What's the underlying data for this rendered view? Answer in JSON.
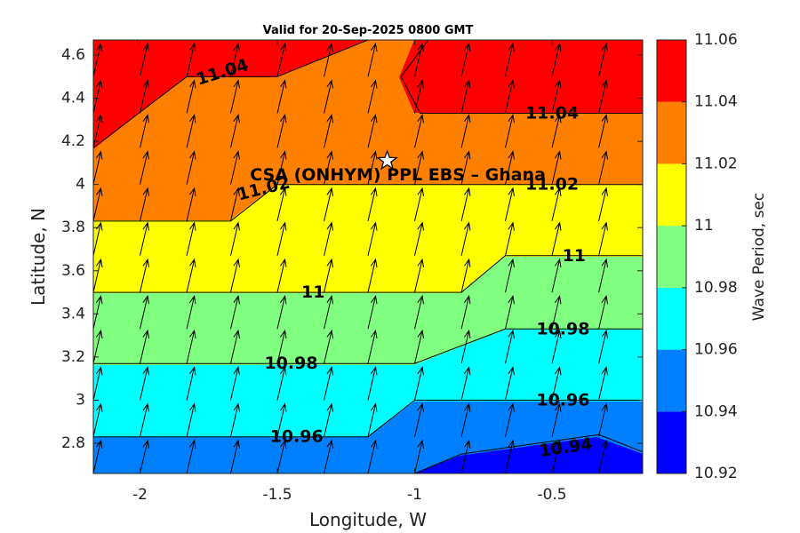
{
  "chart_data": {
    "type": "filled-contour",
    "title": "Valid for 20-Sep-2025 0800 GMT",
    "xlabel": "Longitude, W",
    "ylabel": "Latitude, N",
    "xlim": [
      -2.17,
      -0.17
    ],
    "ylim": [
      2.66,
      4.67
    ],
    "x_ticks": [
      {
        "value": -2,
        "label": "-2"
      },
      {
        "value": -1.5,
        "label": "-1.5"
      },
      {
        "value": -1,
        "label": "-1"
      },
      {
        "value": -0.5,
        "label": "-0.5"
      }
    ],
    "y_ticks": [
      {
        "value": 2.8,
        "label": "2.8"
      },
      {
        "value": 3.0,
        "label": "3"
      },
      {
        "value": 3.2,
        "label": "3.2"
      },
      {
        "value": 3.4,
        "label": "3.4"
      },
      {
        "value": 3.6,
        "label": "3.6"
      },
      {
        "value": 3.8,
        "label": "3.8"
      },
      {
        "value": 4.0,
        "label": "4"
      },
      {
        "value": 4.2,
        "label": "4.2"
      },
      {
        "value": 4.4,
        "label": "4.4"
      },
      {
        "value": 4.6,
        "label": "4.6"
      }
    ],
    "colorbar": {
      "label": "Wave Period, sec",
      "levels": [
        10.92,
        10.94,
        10.96,
        10.98,
        11.0,
        11.02,
        11.04,
        11.06
      ],
      "tick_labels": [
        "10.92",
        "10.94",
        "10.96",
        "10.98",
        "11",
        "11.02",
        "11.04",
        "11.06"
      ],
      "colors": [
        "#0000ff",
        "#0080ff",
        "#00ffff",
        "#80ff80",
        "#ffff00",
        "#ff8000",
        "#ff0000"
      ]
    },
    "contour_lines": [
      {
        "level": 10.94,
        "points": [
          [
            -1.0,
            2.66
          ],
          [
            -0.83,
            2.75
          ],
          [
            -0.33,
            2.84
          ],
          [
            -0.17,
            2.76
          ]
        ]
      },
      {
        "level": 10.96,
        "points": [
          [
            -2.17,
            2.83
          ],
          [
            -1.17,
            2.83
          ],
          [
            -1.0,
            3.0
          ],
          [
            -0.17,
            3.0
          ]
        ]
      },
      {
        "level": 10.98,
        "points": [
          [
            -2.17,
            3.17
          ],
          [
            -1.0,
            3.17
          ],
          [
            -0.67,
            3.33
          ],
          [
            -0.17,
            3.33
          ]
        ]
      },
      {
        "level": 11.0,
        "points": [
          [
            -2.17,
            3.5
          ],
          [
            -0.83,
            3.5
          ],
          [
            -0.67,
            3.67
          ],
          [
            -0.17,
            3.67
          ]
        ]
      },
      {
        "level": 11.02,
        "points": [
          [
            -2.17,
            3.83
          ],
          [
            -1.67,
            3.83
          ],
          [
            -1.5,
            4.0
          ],
          [
            -0.17,
            4.0
          ]
        ]
      },
      {
        "level": 11.04,
        "points": [
          [
            -2.17,
            4.17
          ],
          [
            -1.83,
            4.5
          ],
          [
            -1.5,
            4.5
          ],
          [
            -1.17,
            4.67
          ]
        ]
      },
      {
        "level": 11.04,
        "points": [
          [
            -0.95,
            4.67
          ],
          [
            -1.05,
            4.5
          ],
          [
            -0.98,
            4.33
          ],
          [
            -0.17,
            4.33
          ]
        ]
      }
    ],
    "contour_labels": [
      {
        "text": "11.04",
        "x": -1.7,
        "y": 4.52,
        "angle": -17
      },
      {
        "text": "11.04",
        "x": -0.5,
        "y": 4.33,
        "angle": 0
      },
      {
        "text": "11.02",
        "x": -1.55,
        "y": 3.98,
        "angle": -14
      },
      {
        "text": "11.02",
        "x": -0.5,
        "y": 4.0,
        "angle": 0
      },
      {
        "text": "11",
        "x": -0.42,
        "y": 3.67,
        "angle": 0
      },
      {
        "text": "11",
        "x": -1.37,
        "y": 3.5,
        "angle": 0
      },
      {
        "text": "10.98",
        "x": -1.45,
        "y": 3.17,
        "angle": 0
      },
      {
        "text": "10.98",
        "x": -0.46,
        "y": 3.33,
        "angle": 0
      },
      {
        "text": "10.96",
        "x": -0.46,
        "y": 3.0,
        "angle": 0
      },
      {
        "text": "10.96",
        "x": -1.43,
        "y": 2.83,
        "angle": 0
      },
      {
        "text": "10.94",
        "x": -0.45,
        "y": 2.78,
        "angle": -8
      }
    ],
    "site": {
      "label": "CSA (ONHYM) PPL EBS  – Ghana",
      "lon": -1.1,
      "lat": 4.11,
      "marker": "star-icon"
    },
    "wave_direction": {
      "bearing_deg": 13,
      "grid_lon": [
        -2.17,
        -2.0,
        -1.83,
        -1.67,
        -1.5,
        -1.33,
        -1.17,
        -1.0,
        -0.83,
        -0.67,
        -0.5,
        -0.33
      ],
      "grid_lat": [
        2.66,
        2.83,
        3.0,
        3.17,
        3.33,
        3.5,
        3.67,
        3.83,
        4.0,
        4.17,
        4.33,
        4.5
      ]
    }
  }
}
